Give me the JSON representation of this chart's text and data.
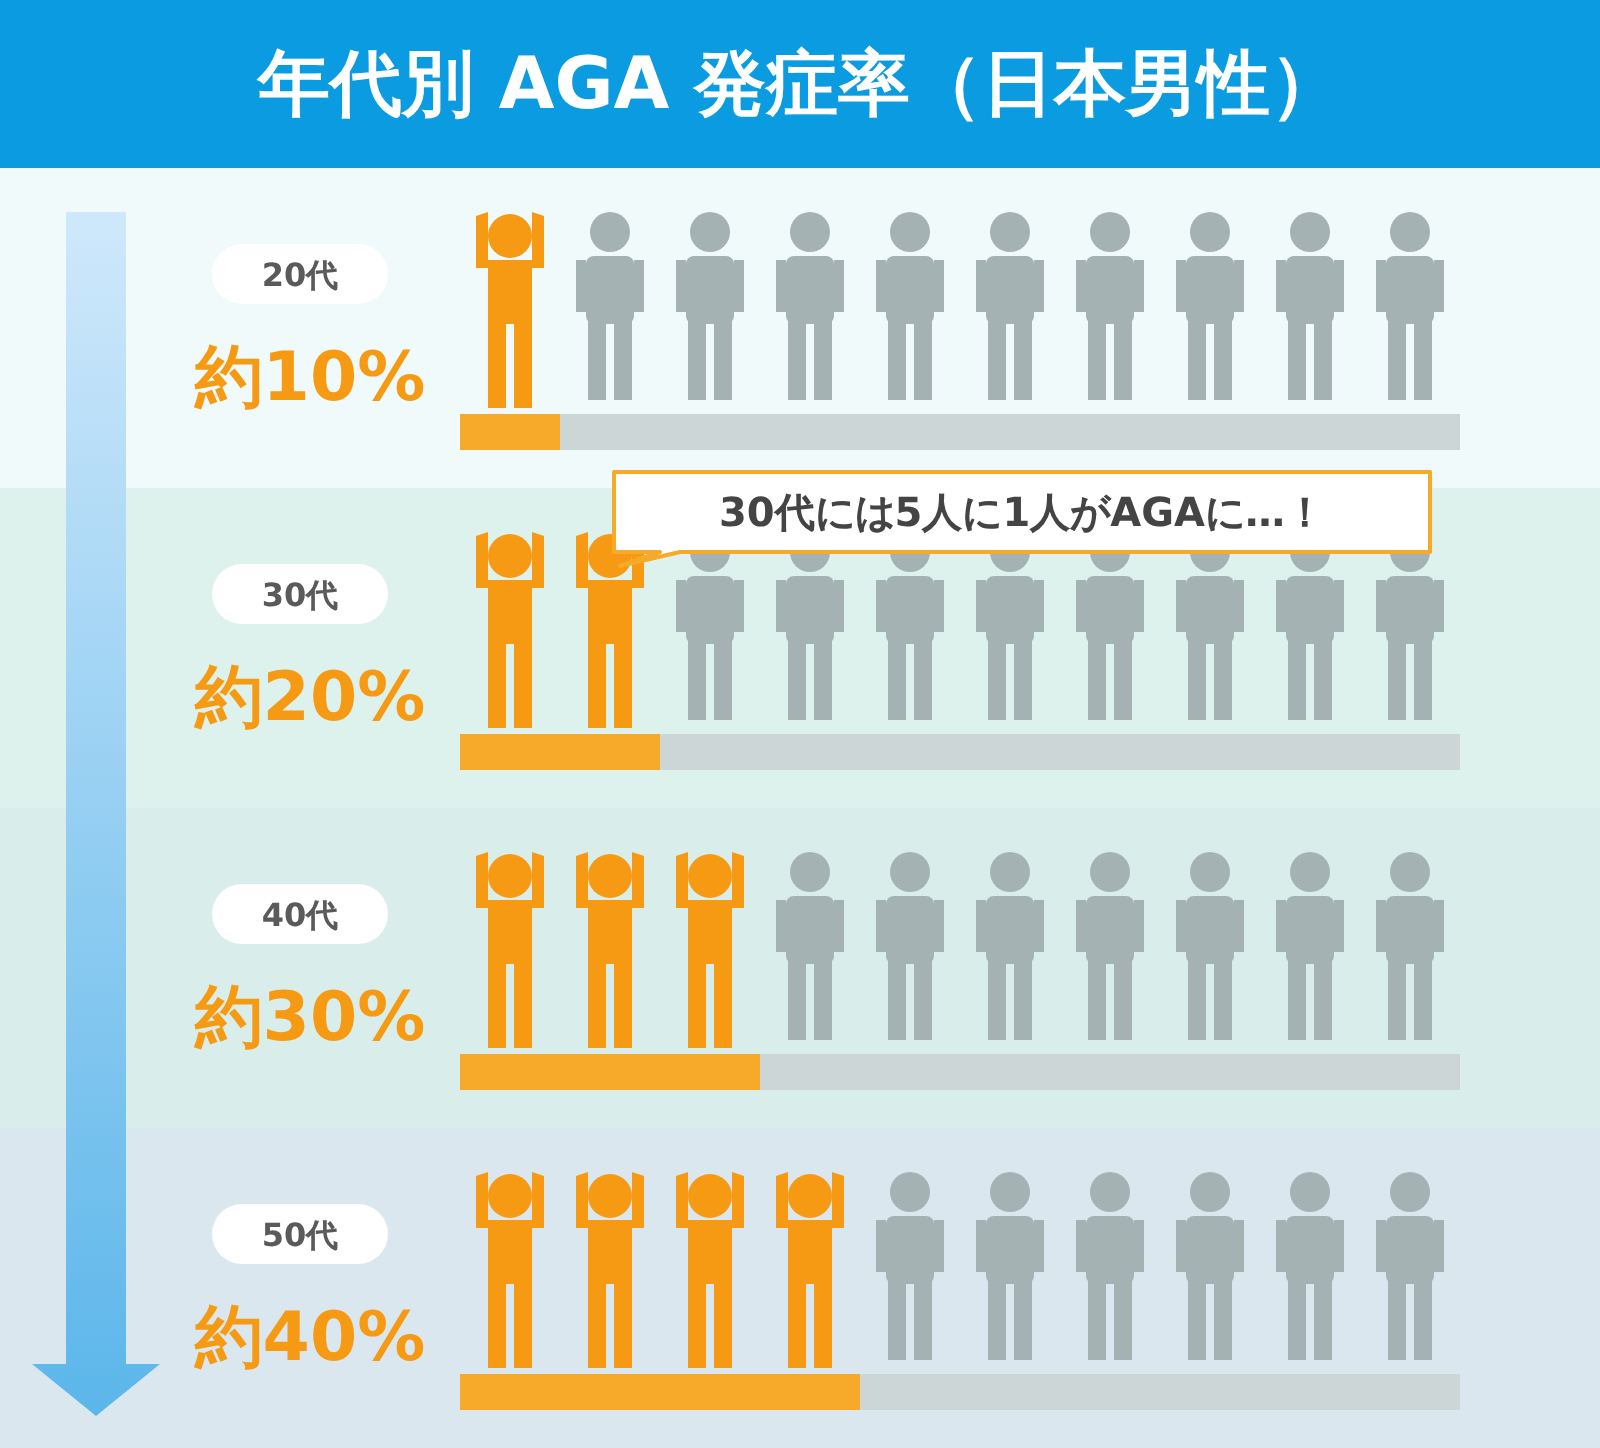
{
  "chart_data": {
    "type": "bar",
    "orientation": "horizontal",
    "title": "年代別 AGA 発症率（日本男性）",
    "categories": [
      "20代",
      "30代",
      "40代",
      "50代"
    ],
    "values": [
      10,
      20,
      30,
      40
    ],
    "value_labels": [
      "約10%",
      "約20%",
      "約30%",
      "約40%"
    ],
    "color": "#f7a92a",
    "xlim": [
      0,
      100
    ],
    "tick_labels": "y",
    "annotations": [
      "30代には5人に1人がAGAに…！"
    ]
  }
}
